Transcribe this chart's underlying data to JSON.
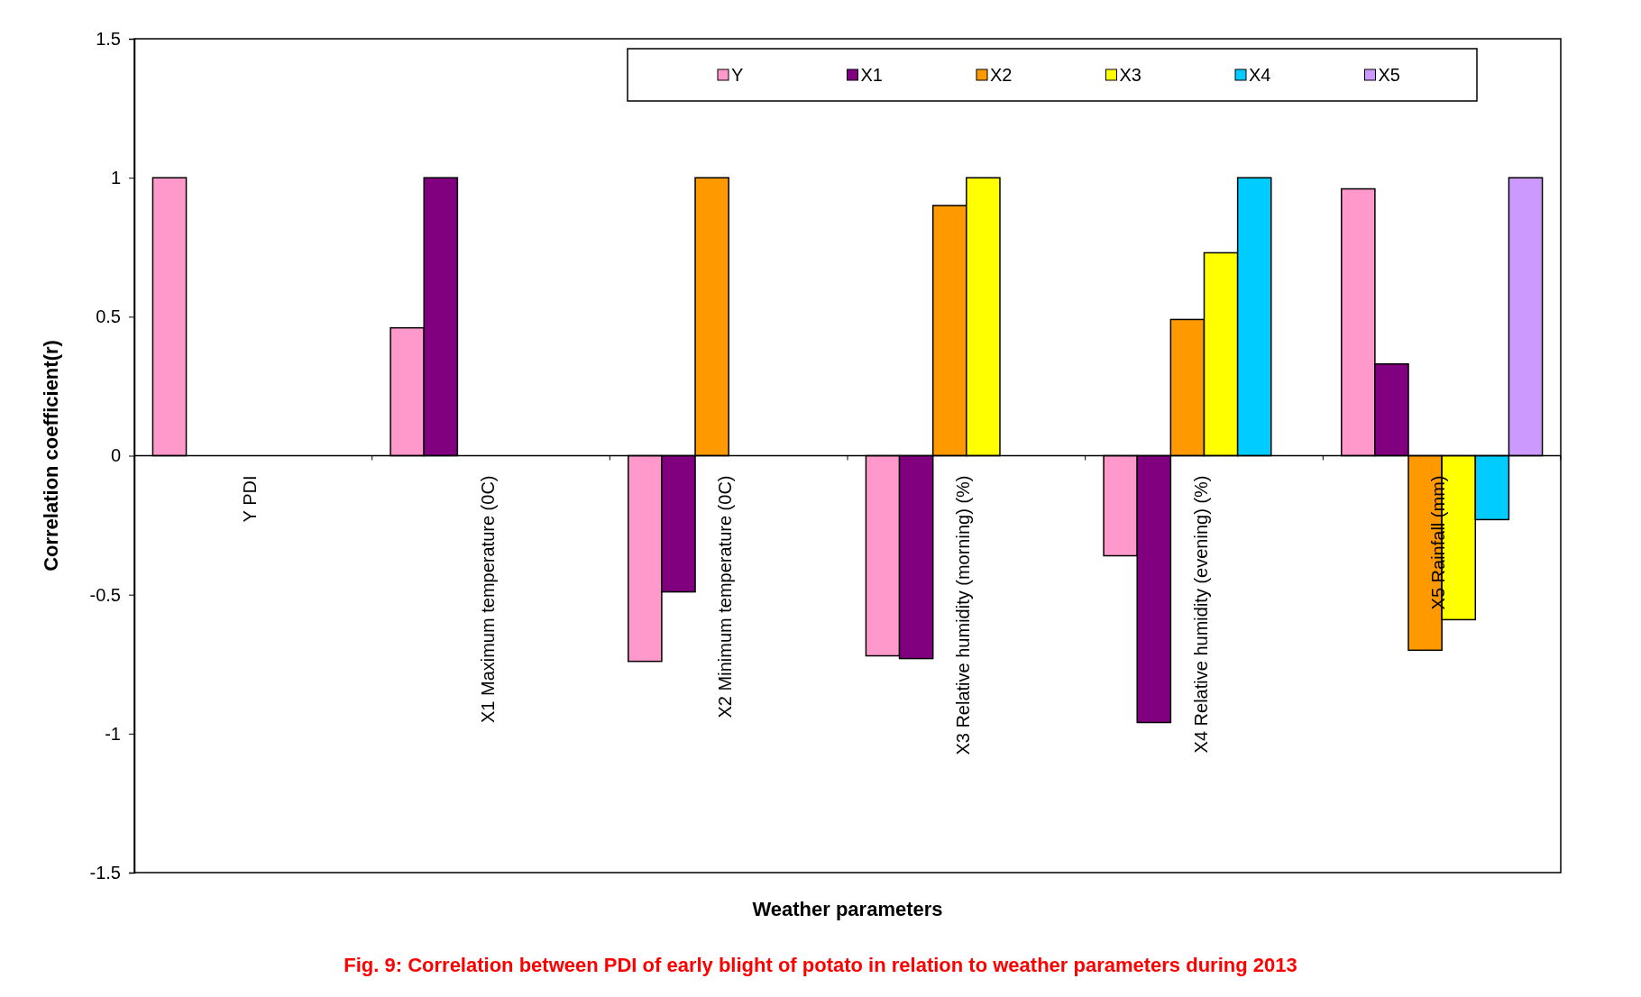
{
  "chart_data": {
    "type": "bar",
    "title": "Fig. 9: Correlation between PDI of early blight of potato in relation to weather parameters during 2013",
    "xlabel": "Weather parameters",
    "ylabel": "Correlation coefficient(r)",
    "categories": [
      "Y PDI",
      "X1 Maximum temperature (0C)",
      "X2 Minimum temperature (0C)",
      "X3 Relative humidity (morning) (%)",
      "X4 Relative humidity (evening) (%)",
      "X5 Rainfall (mm)"
    ],
    "series": [
      {
        "name": "Y",
        "color": "#ff99cc",
        "values": [
          1,
          0.46,
          -0.74,
          -0.72,
          -0.36,
          0.96
        ]
      },
      {
        "name": "X1",
        "color": "#800080",
        "values": [
          null,
          1,
          -0.49,
          -0.73,
          -0.96,
          0.33
        ]
      },
      {
        "name": "X2",
        "color": "#ff9900",
        "values": [
          null,
          null,
          1,
          0.9,
          0.49,
          -0.7
        ]
      },
      {
        "name": "X3",
        "color": "#ffff00",
        "values": [
          null,
          null,
          null,
          1,
          0.73,
          -0.59
        ]
      },
      {
        "name": "X4",
        "color": "#00ccff",
        "values": [
          null,
          null,
          null,
          null,
          1,
          -0.23
        ]
      },
      {
        "name": "X5",
        "color": "#cc99ff",
        "values": [
          null,
          null,
          null,
          null,
          null,
          1
        ]
      }
    ],
    "ylim": [
      -1.5,
      1.5
    ],
    "yticks": [
      -1.5,
      -1,
      -0.5,
      0,
      0.5,
      1,
      1.5
    ],
    "legend": "top",
    "grid": false
  }
}
